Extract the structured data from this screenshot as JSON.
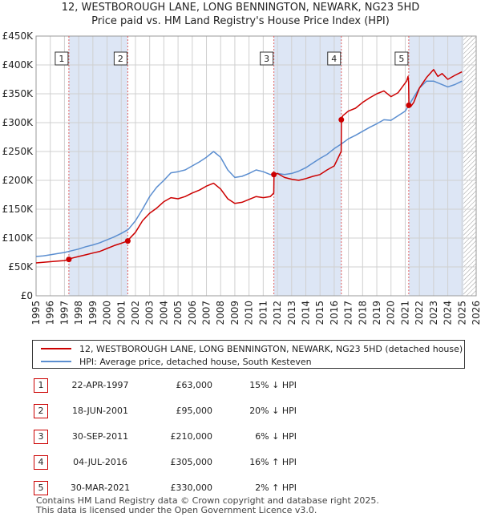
{
  "header": {
    "title_line1": "12, WESTBOROUGH LANE, LONG BENNINGTON, NEWARK, NG23 5HD",
    "title_line2": "Price paid vs. HM Land Registry's House Price Index (HPI)"
  },
  "colors": {
    "property": "#cc0000",
    "hpi": "#5b8ed0",
    "shade": "#dde6f5",
    "marker_line": "#e06060",
    "grid": "#d0d0d0"
  },
  "chart_data": {
    "type": "line",
    "xlim": [
      1995,
      2026
    ],
    "ylim": [
      0,
      450000
    ],
    "x_ticks": [
      1995,
      1996,
      1997,
      1998,
      1999,
      2000,
      2001,
      2002,
      2003,
      2004,
      2005,
      2006,
      2007,
      2008,
      2009,
      2010,
      2011,
      2012,
      2013,
      2014,
      2015,
      2016,
      2017,
      2018,
      2019,
      2020,
      2021,
      2022,
      2023,
      2024,
      2025,
      2026
    ],
    "y_ticks": [
      {
        "value": 0,
        "label": "£0"
      },
      {
        "value": 50000,
        "label": "£50K"
      },
      {
        "value": 100000,
        "label": "£100K"
      },
      {
        "value": 150000,
        "label": "£150K"
      },
      {
        "value": 200000,
        "label": "£200K"
      },
      {
        "value": 250000,
        "label": "£250K"
      },
      {
        "value": 300000,
        "label": "£300K"
      },
      {
        "value": 350000,
        "label": "£350K"
      },
      {
        "value": 400000,
        "label": "£400K"
      },
      {
        "value": 450000,
        "label": "£450K"
      }
    ],
    "grid": true,
    "shaded_spans": [
      [
        1997.3,
        2001.45
      ],
      [
        2011.75,
        2016.5
      ],
      [
        2021.25,
        2025.1
      ]
    ],
    "hatched_from": 2025.1,
    "series": [
      {
        "name": "12, WESTBOROUGH LANE, LONG BENNINGTON, NEWARK, NG23 5HD (detached house)",
        "color": "#cc0000",
        "x": [
          1995,
          1995.5,
          1996,
          1996.5,
          1997,
          1997.31,
          1997.5,
          1998,
          1998.5,
          1999,
          1999.5,
          2000,
          2000.5,
          2001,
          2001.46,
          2001.5,
          2002,
          2002.5,
          2003,
          2003.5,
          2004,
          2004.5,
          2005,
          2005.5,
          2006,
          2006.5,
          2007,
          2007.5,
          2008,
          2008.5,
          2009,
          2009.5,
          2010,
          2010.5,
          2011,
          2011.5,
          2011.74,
          2011.76,
          2012,
          2012.5,
          2013,
          2013.5,
          2014,
          2014.5,
          2015,
          2015.5,
          2016,
          2016.49,
          2016.51,
          2016.6,
          2017,
          2017.5,
          2018,
          2018.5,
          2019,
          2019.5,
          2020,
          2020.5,
          2021.1,
          2021.2,
          2021.24,
          2021.26,
          2021.4,
          2021.6,
          2022,
          2022.5,
          2023,
          2023.3,
          2023.6,
          2024,
          2024.5,
          2025
        ],
        "y": [
          57000,
          58000,
          59000,
          60000,
          61000,
          63000,
          65000,
          68000,
          71000,
          74000,
          77000,
          82000,
          87000,
          91000,
          95000,
          97000,
          110000,
          130000,
          143000,
          152000,
          163000,
          170000,
          168000,
          172000,
          178000,
          183000,
          190000,
          195000,
          185000,
          168000,
          160000,
          162000,
          167000,
          172000,
          170000,
          172000,
          178000,
          210000,
          212000,
          205000,
          202000,
          200000,
          203000,
          207000,
          210000,
          218000,
          225000,
          250000,
          305000,
          312000,
          320000,
          325000,
          335000,
          343000,
          350000,
          355000,
          345000,
          352000,
          372000,
          380000,
          370000,
          330000,
          328000,
          335000,
          360000,
          378000,
          392000,
          380000,
          385000,
          375000,
          382000,
          388000
        ]
      },
      {
        "name": "HPI: Average price, detached house, South Kesteven",
        "color": "#5b8ed0",
        "x": [
          1995,
          1995.5,
          1996,
          1996.5,
          1997,
          1997.5,
          1998,
          1998.5,
          1999,
          1999.5,
          2000,
          2000.5,
          2001,
          2001.5,
          2002,
          2002.5,
          2003,
          2003.5,
          2004,
          2004.5,
          2005,
          2005.5,
          2006,
          2006.5,
          2007,
          2007.5,
          2008,
          2008.5,
          2009,
          2009.5,
          2010,
          2010.5,
          2011,
          2011.5,
          2012,
          2012.5,
          2013,
          2013.5,
          2014,
          2014.5,
          2015,
          2015.5,
          2016,
          2016.5,
          2017,
          2017.5,
          2018,
          2018.5,
          2019,
          2019.5,
          2020,
          2020.5,
          2021,
          2021.5,
          2022,
          2022.5,
          2023,
          2023.5,
          2024,
          2024.5,
          2025
        ],
        "y": [
          68000,
          69000,
          71000,
          73000,
          75000,
          78000,
          81000,
          85000,
          88000,
          92000,
          97000,
          102000,
          108000,
          115000,
          130000,
          150000,
          172000,
          188000,
          200000,
          213000,
          215000,
          218000,
          225000,
          232000,
          240000,
          250000,
          240000,
          218000,
          205000,
          207000,
          212000,
          218000,
          215000,
          210000,
          212000,
          210000,
          212000,
          216000,
          222000,
          230000,
          238000,
          245000,
          255000,
          263000,
          272000,
          278000,
          285000,
          292000,
          298000,
          305000,
          304000,
          312000,
          320000,
          340000,
          360000,
          372000,
          372000,
          367000,
          362000,
          366000,
          372000
        ]
      }
    ],
    "transactions": [
      {
        "num": "1",
        "x": 1997.31,
        "y": 63000
      },
      {
        "num": "2",
        "x": 2001.46,
        "y": 95000
      },
      {
        "num": "3",
        "x": 2011.75,
        "y": 210000
      },
      {
        "num": "4",
        "x": 2016.5,
        "y": 305000
      },
      {
        "num": "5",
        "x": 2021.25,
        "y": 330000
      }
    ]
  },
  "legend": {
    "property_label": "12, WESTBOROUGH LANE, LONG BENNINGTON, NEWARK, NG23 5HD (detached house)",
    "hpi_label": "HPI: Average price, detached house, South Kesteven"
  },
  "table": [
    {
      "num": "1",
      "date": "22-APR-1997",
      "price": "£63,000",
      "hpi": "15% ↓ HPI"
    },
    {
      "num": "2",
      "date": "18-JUN-2001",
      "price": "£95,000",
      "hpi": "20% ↓ HPI"
    },
    {
      "num": "3",
      "date": "30-SEP-2011",
      "price": "£210,000",
      "hpi": "6% ↓ HPI"
    },
    {
      "num": "4",
      "date": "04-JUL-2016",
      "price": "£305,000",
      "hpi": "16% ↑ HPI"
    },
    {
      "num": "5",
      "date": "30-MAR-2021",
      "price": "£330,000",
      "hpi": "2% ↑ HPI"
    }
  ],
  "footer": {
    "line1": "Contains HM Land Registry data © Crown copyright and database right 2025.",
    "line2": "This data is licensed under the Open Government Licence v3.0."
  }
}
